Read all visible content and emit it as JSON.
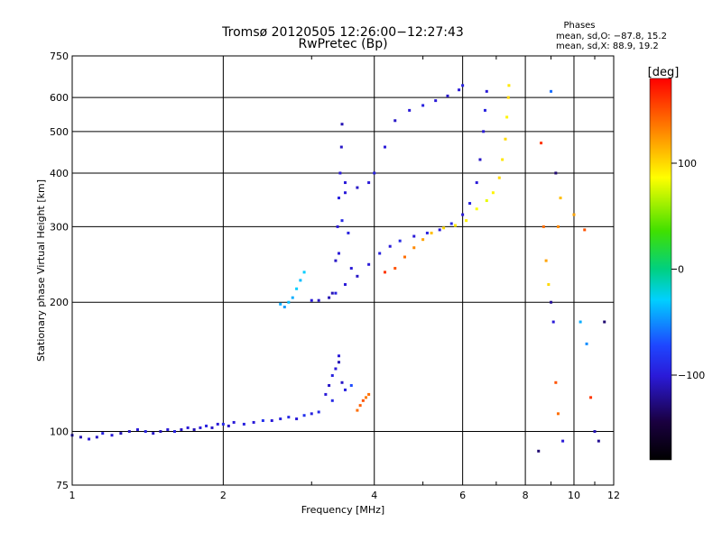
{
  "header": {
    "title_line1": "Tromsø 20120505 12:26:00−12:27:43",
    "title_line2": "RwPretec (Bp)",
    "phases_title": "Phases",
    "phases_line1": "mean, sd,O: −87.8, 15.2",
    "phases_line2": "mean, sd,X:  88.9, 19.2"
  },
  "colorbar": {
    "label": "[deg]",
    "ticks": [
      {
        "value": 100,
        "label": "100"
      },
      {
        "value": 0,
        "label": "0"
      },
      {
        "value": -100,
        "label": "−100"
      }
    ],
    "range": [
      -180,
      180
    ]
  },
  "chart_data": {
    "type": "scatter",
    "title": "Tromsø 20120505 12:26:00−12:27:43",
    "subtitle": "RwPretec (Bp)",
    "xlabel": "Frequency [MHz]",
    "ylabel": "Stationary phase Virtual Height [km]",
    "xscale": "log",
    "yscale": "log",
    "xlim": [
      1,
      12
    ],
    "ylim": [
      75,
      750
    ],
    "xticks": [
      {
        "value": 1,
        "label": "1"
      },
      {
        "value": 2,
        "label": "2"
      },
      {
        "value": 4,
        "label": "4"
      },
      {
        "value": 6,
        "label": "6"
      },
      {
        "value": 8,
        "label": "8"
      },
      {
        "value": 10,
        "label": "10"
      },
      {
        "value": 12,
        "label": "12"
      }
    ],
    "yticks": [
      {
        "value": 75,
        "label": "75"
      },
      {
        "value": 100,
        "label": "100"
      },
      {
        "value": 200,
        "label": "200"
      },
      {
        "value": 300,
        "label": "300"
      },
      {
        "value": 400,
        "label": "400"
      },
      {
        "value": 500,
        "label": "500"
      },
      {
        "value": 600,
        "label": "600"
      },
      {
        "value": 750,
        "label": "750"
      }
    ],
    "grid": true,
    "color_by": "phase [deg]",
    "series": [
      {
        "values": [
          [
            1.0,
            98,
            -105
          ],
          [
            1.04,
            97,
            -110
          ],
          [
            1.08,
            96,
            -100
          ],
          [
            1.12,
            97,
            -105
          ],
          [
            1.15,
            99,
            -95
          ],
          [
            1.2,
            98,
            -100
          ],
          [
            1.25,
            99,
            -110
          ],
          [
            1.3,
            100,
            -105
          ],
          [
            1.35,
            101,
            -100
          ],
          [
            1.4,
            100,
            -95
          ],
          [
            1.45,
            99,
            -105
          ],
          [
            1.5,
            100,
            -110
          ],
          [
            1.55,
            101,
            -100
          ],
          [
            1.6,
            100,
            -95
          ],
          [
            1.65,
            101,
            -105
          ],
          [
            1.7,
            102,
            -100
          ],
          [
            1.75,
            101,
            -110
          ],
          [
            1.8,
            102,
            -100
          ],
          [
            1.85,
            103,
            -95
          ],
          [
            1.9,
            102,
            -105
          ],
          [
            1.95,
            104,
            -100
          ],
          [
            2.0,
            104,
            -90
          ],
          [
            2.05,
            103,
            -105
          ],
          [
            2.1,
            105,
            -100
          ],
          [
            2.2,
            104,
            -95
          ],
          [
            2.3,
            105,
            -100
          ],
          [
            2.4,
            106,
            -85
          ],
          [
            2.5,
            106,
            -100
          ],
          [
            2.6,
            107,
            -95
          ],
          [
            2.7,
            108,
            -90
          ],
          [
            2.8,
            107,
            -100
          ],
          [
            2.9,
            109,
            -85
          ],
          [
            3.0,
            110,
            -95
          ],
          [
            3.1,
            111,
            -90
          ]
        ]
      },
      {
        "values": [
          [
            3.2,
            122,
            -100
          ],
          [
            3.25,
            128,
            -105
          ],
          [
            3.3,
            135,
            -95
          ],
          [
            3.35,
            140,
            -100
          ],
          [
            3.4,
            145,
            -110
          ],
          [
            3.45,
            130,
            -105
          ],
          [
            3.5,
            125,
            -95
          ],
          [
            3.3,
            118,
            -90
          ],
          [
            3.4,
            150,
            -100
          ],
          [
            3.6,
            128,
            -70
          ]
        ]
      },
      {
        "values": [
          [
            3.7,
            112,
            140
          ],
          [
            3.75,
            115,
            145
          ],
          [
            3.8,
            118,
            150
          ],
          [
            3.85,
            120,
            135
          ],
          [
            3.9,
            122,
            140
          ]
        ]
      },
      {
        "values": [
          [
            2.6,
            198,
            -40
          ],
          [
            2.65,
            195,
            -45
          ],
          [
            2.7,
            200,
            -35
          ],
          [
            2.75,
            205,
            -40
          ],
          [
            2.8,
            215,
            -30
          ],
          [
            2.85,
            225,
            -35
          ],
          [
            2.9,
            235,
            -30
          ]
        ]
      },
      {
        "values": [
          [
            3.0,
            202,
            -100
          ],
          [
            3.1,
            202,
            -105
          ],
          [
            3.25,
            205,
            -110
          ],
          [
            3.35,
            210,
            -95
          ],
          [
            3.5,
            220,
            -100
          ],
          [
            3.7,
            230,
            -105
          ],
          [
            3.9,
            245,
            -100
          ],
          [
            4.1,
            260,
            -95
          ],
          [
            4.3,
            270,
            -100
          ],
          [
            4.5,
            278,
            -90
          ],
          [
            4.8,
            285,
            -100
          ],
          [
            5.1,
            290,
            -95
          ],
          [
            5.4,
            295,
            -100
          ],
          [
            5.7,
            305,
            -90
          ],
          [
            6.0,
            320,
            -100
          ],
          [
            6.2,
            340,
            -95
          ],
          [
            6.4,
            380,
            -100
          ],
          [
            6.5,
            430,
            -105
          ],
          [
            6.6,
            500,
            -100
          ],
          [
            6.65,
            560,
            -95
          ],
          [
            6.7,
            620,
            -100
          ]
        ]
      },
      {
        "values": [
          [
            3.3,
            210,
            -110
          ],
          [
            3.35,
            250,
            -105
          ],
          [
            3.38,
            300,
            -100
          ],
          [
            3.4,
            350,
            -95
          ],
          [
            3.42,
            400,
            -100
          ],
          [
            3.44,
            460,
            -105
          ],
          [
            3.45,
            520,
            -110
          ],
          [
            3.5,
            380,
            -100
          ],
          [
            3.55,
            290,
            -95
          ],
          [
            3.6,
            240,
            -100
          ],
          [
            3.45,
            310,
            -90
          ],
          [
            3.4,
            260,
            -100
          ]
        ]
      },
      {
        "values": [
          [
            3.5,
            360,
            -100
          ],
          [
            3.7,
            370,
            -105
          ],
          [
            3.9,
            380,
            -100
          ],
          [
            4.0,
            400,
            -95
          ],
          [
            4.2,
            460,
            -100
          ],
          [
            4.4,
            530,
            -105
          ],
          [
            4.7,
            560,
            -100
          ],
          [
            5.0,
            575,
            -95
          ],
          [
            5.3,
            590,
            -100
          ],
          [
            5.6,
            605,
            -105
          ],
          [
            5.9,
            625,
            -100
          ],
          [
            6.0,
            640,
            -95
          ]
        ]
      },
      {
        "values": [
          [
            4.2,
            235,
            160
          ],
          [
            4.4,
            240,
            150
          ],
          [
            4.6,
            255,
            140
          ],
          [
            4.8,
            268,
            130
          ],
          [
            5.0,
            280,
            120
          ],
          [
            5.2,
            290,
            110
          ],
          [
            5.5,
            298,
            100
          ],
          [
            5.8,
            302,
            95
          ],
          [
            6.1,
            310,
            90
          ],
          [
            6.4,
            330,
            85
          ],
          [
            6.7,
            345,
            80
          ],
          [
            6.9,
            360,
            90
          ],
          [
            7.1,
            390,
            100
          ],
          [
            7.2,
            430,
            95
          ],
          [
            7.3,
            480,
            100
          ],
          [
            7.35,
            540,
            90
          ],
          [
            7.4,
            600,
            100
          ],
          [
            7.42,
            640,
            95
          ]
        ]
      },
      {
        "values": [
          [
            8.6,
            470,
            160
          ],
          [
            8.7,
            300,
            140
          ],
          [
            8.8,
            250,
            120
          ],
          [
            8.9,
            220,
            100
          ],
          [
            9.0,
            200,
            -120
          ],
          [
            9.1,
            180,
            -100
          ],
          [
            9.2,
            130,
            150
          ],
          [
            9.3,
            110,
            140
          ],
          [
            9.0,
            620,
            -60
          ],
          [
            9.2,
            400,
            -130
          ],
          [
            9.4,
            350,
            110
          ],
          [
            9.3,
            300,
            130
          ],
          [
            8.5,
            90,
            -130
          ],
          [
            9.5,
            95,
            -100
          ],
          [
            10.3,
            180,
            -40
          ],
          [
            10.6,
            160,
            -50
          ],
          [
            10.8,
            120,
            160
          ],
          [
            11.0,
            100,
            -110
          ],
          [
            11.2,
            95,
            -120
          ],
          [
            11.5,
            180,
            -130
          ],
          [
            10.0,
            320,
            120
          ],
          [
            10.5,
            295,
            150
          ]
        ]
      }
    ]
  }
}
